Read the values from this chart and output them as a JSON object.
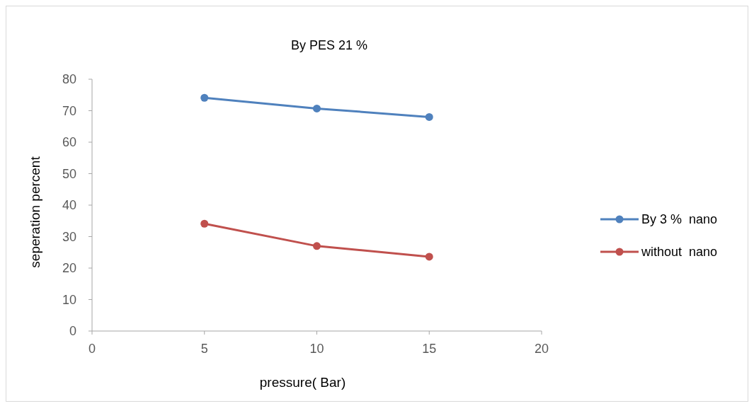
{
  "chart_data": {
    "type": "line",
    "title": "By PES 21 %",
    "xlabel": "pressure( Bar)",
    "ylabel": "seperation percent",
    "x": [
      5,
      10,
      15
    ],
    "series": [
      {
        "name": "By 3 %  nano",
        "color": "#4f81bd",
        "values": [
          74.1,
          70.7,
          68
        ]
      },
      {
        "name": "without  nano",
        "color": "#c0504d",
        "values": [
          34.1,
          27,
          23.6
        ]
      }
    ],
    "xlim": [
      0,
      20
    ],
    "xticks": [
      0,
      5,
      10,
      15,
      20
    ],
    "ylim": [
      0,
      80
    ],
    "yticks": [
      0,
      10,
      20,
      30,
      40,
      50,
      60,
      70,
      80
    ],
    "grid": false,
    "legend": "right",
    "marker": "circle",
    "line_style": "solid"
  }
}
